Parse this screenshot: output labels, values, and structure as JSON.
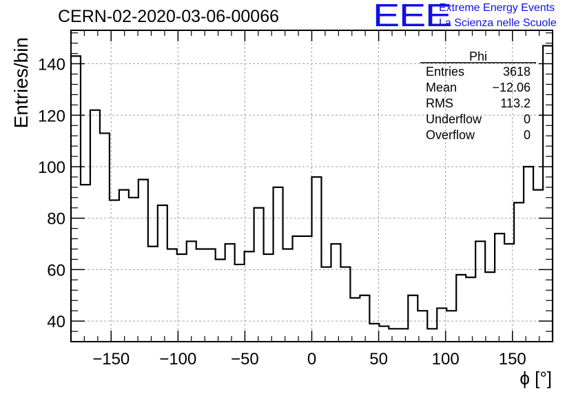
{
  "header": {
    "title": "CERN-02-2020-03-06-00066",
    "logo_text": "EEE",
    "logo_line1": "Extreme Energy Events",
    "logo_line2": "La Scienza nelle Scuole"
  },
  "stats_box": {
    "name": "Phi",
    "rows": [
      {
        "label": "Entries",
        "value": "3618"
      },
      {
        "label": "Mean",
        "value": "−12.06"
      },
      {
        "label": "RMS",
        "value": "113.2"
      },
      {
        "label": "Underflow",
        "value": "0"
      },
      {
        "label": "Overflow",
        "value": "0"
      }
    ]
  },
  "chart_data": {
    "type": "bar",
    "style": "step-histogram",
    "xlabel": "ϕ [°]",
    "ylabel": "Entries/bin",
    "xlim": [
      -180,
      180
    ],
    "ylim": [
      32,
      153
    ],
    "xticks": [
      -150,
      -100,
      -50,
      0,
      50,
      100,
      150
    ],
    "xtick_labels": [
      "−150",
      "−100",
      "−50",
      "0",
      "50",
      "100",
      "150"
    ],
    "yticks": [
      40,
      60,
      80,
      100,
      120,
      140
    ],
    "grid": true,
    "bin_width": 7.2,
    "values": [
      143,
      93,
      122,
      113,
      87,
      91,
      88,
      95,
      69,
      85,
      68,
      66,
      71,
      68,
      68,
      64,
      70,
      62,
      67,
      84,
      66,
      92,
      68,
      73,
      73,
      96,
      61,
      70,
      61,
      49,
      50,
      39,
      38,
      37,
      37,
      50,
      44,
      37,
      45,
      44,
      58,
      57,
      71,
      59,
      74,
      70,
      86,
      100,
      91,
      147
    ],
    "colors": {
      "line": "#000000",
      "grid": "#a0a0a0",
      "accent": "#1010e6"
    }
  }
}
